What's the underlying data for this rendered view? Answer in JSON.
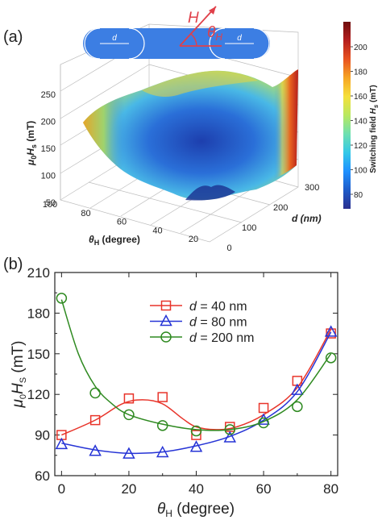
{
  "panel_a": {
    "label": "(a)",
    "field_symbol": "H",
    "angle_symbol": "θ",
    "angle_sub": "H",
    "particle_label_left": "d",
    "particle_label_right": "d",
    "z_axis": {
      "prefix": "μ",
      "sub": "0",
      "sym": "H",
      "sub2": "s",
      "unit": "(mT)",
      "ticks": [
        "250",
        "200",
        "150",
        "100",
        "50"
      ]
    },
    "theta_axis": {
      "sym": "θ",
      "sub": "H",
      "unit": "(degree)",
      "ticks": [
        "100",
        "80",
        "60",
        "40",
        "20",
        "0"
      ]
    },
    "d_axis": {
      "label": "d (nm)",
      "ticks": [
        "300",
        "200",
        "100"
      ]
    },
    "colorbar": {
      "title_main": "Switching field ",
      "title_sym": "H",
      "title_sub": "s",
      "title_unit": " (mT)",
      "ticks": [
        "200",
        "180",
        "160",
        "140",
        "120",
        "100",
        "80"
      ],
      "colors": [
        "#2a2f8f",
        "#1e5bc8",
        "#1e90ff",
        "#33c8e8",
        "#6ee0b0",
        "#b8e860",
        "#f5e03a",
        "#f6a523",
        "#e8521f",
        "#b51e1e",
        "#6e0d0d"
      ]
    }
  },
  "panel_b": {
    "label": "(b)",
    "chart_data": {
      "type": "line",
      "xlabel_sym": "θ",
      "xlabel_sub": "H",
      "xlabel_unit": " (degree)",
      "ylabel_sym": "μ",
      "ylabel_sub": "0",
      "ylabel_sym2": "H",
      "ylabel_sub2": "S",
      "ylabel_unit": " (mT)",
      "xlim": [
        -2,
        82
      ],
      "ylim": [
        60,
        210
      ],
      "xticks": [
        0,
        20,
        40,
        60,
        80
      ],
      "yticks": [
        60,
        90,
        120,
        150,
        180,
        210
      ],
      "legend_placement": "top-center",
      "series": [
        {
          "name": "d = 40 nm",
          "legend_sym": "d",
          "legend_rest": " = 40 nm",
          "color": "#e8342a",
          "marker": "square",
          "x": [
            0,
            10,
            20,
            30,
            40,
            50,
            60,
            70,
            80
          ],
          "y": [
            90,
            101,
            117,
            118,
            90,
            96,
            110,
            130,
            165
          ],
          "fit": [
            [
              0,
              90
            ],
            [
              10,
              101
            ],
            [
              18,
              113
            ],
            [
              24,
              116
            ],
            [
              30,
              113
            ],
            [
              36,
              102
            ],
            [
              40,
              96
            ],
            [
              46,
              94
            ],
            [
              52,
              96
            ],
            [
              60,
              105
            ],
            [
              70,
              125
            ],
            [
              80,
              168
            ]
          ]
        },
        {
          "name": "d = 80 nm",
          "legend_sym": "d",
          "legend_rest": " = 80 nm",
          "color": "#2634d6",
          "marker": "triangle",
          "x": [
            0,
            10,
            20,
            30,
            40,
            50,
            60,
            70,
            80
          ],
          "y": [
            83,
            78,
            76,
            77,
            81,
            88,
            101,
            123,
            166
          ],
          "fit": [
            [
              0,
              84
            ],
            [
              10,
              79
            ],
            [
              20,
              76.5
            ],
            [
              30,
              77.5
            ],
            [
              40,
              82
            ],
            [
              50,
              89
            ],
            [
              60,
              101
            ],
            [
              70,
              122
            ],
            [
              80,
              166
            ]
          ]
        },
        {
          "name": "d = 200 nm",
          "legend_sym": "d",
          "legend_rest": " = 200 nm",
          "color": "#2f8a21",
          "marker": "circle",
          "x": [
            0,
            10,
            20,
            30,
            40,
            50,
            60,
            70,
            80
          ],
          "y": [
            191,
            121,
            105,
            97,
            93,
            94,
            99,
            111,
            147
          ],
          "fit": [
            [
              0,
              190
            ],
            [
              5,
              150
            ],
            [
              10,
              126
            ],
            [
              15,
              113
            ],
            [
              20,
              105
            ],
            [
              30,
              98
            ],
            [
              40,
              94
            ],
            [
              50,
              94
            ],
            [
              60,
              100
            ],
            [
              70,
              116
            ],
            [
              80,
              150
            ]
          ]
        }
      ]
    }
  }
}
